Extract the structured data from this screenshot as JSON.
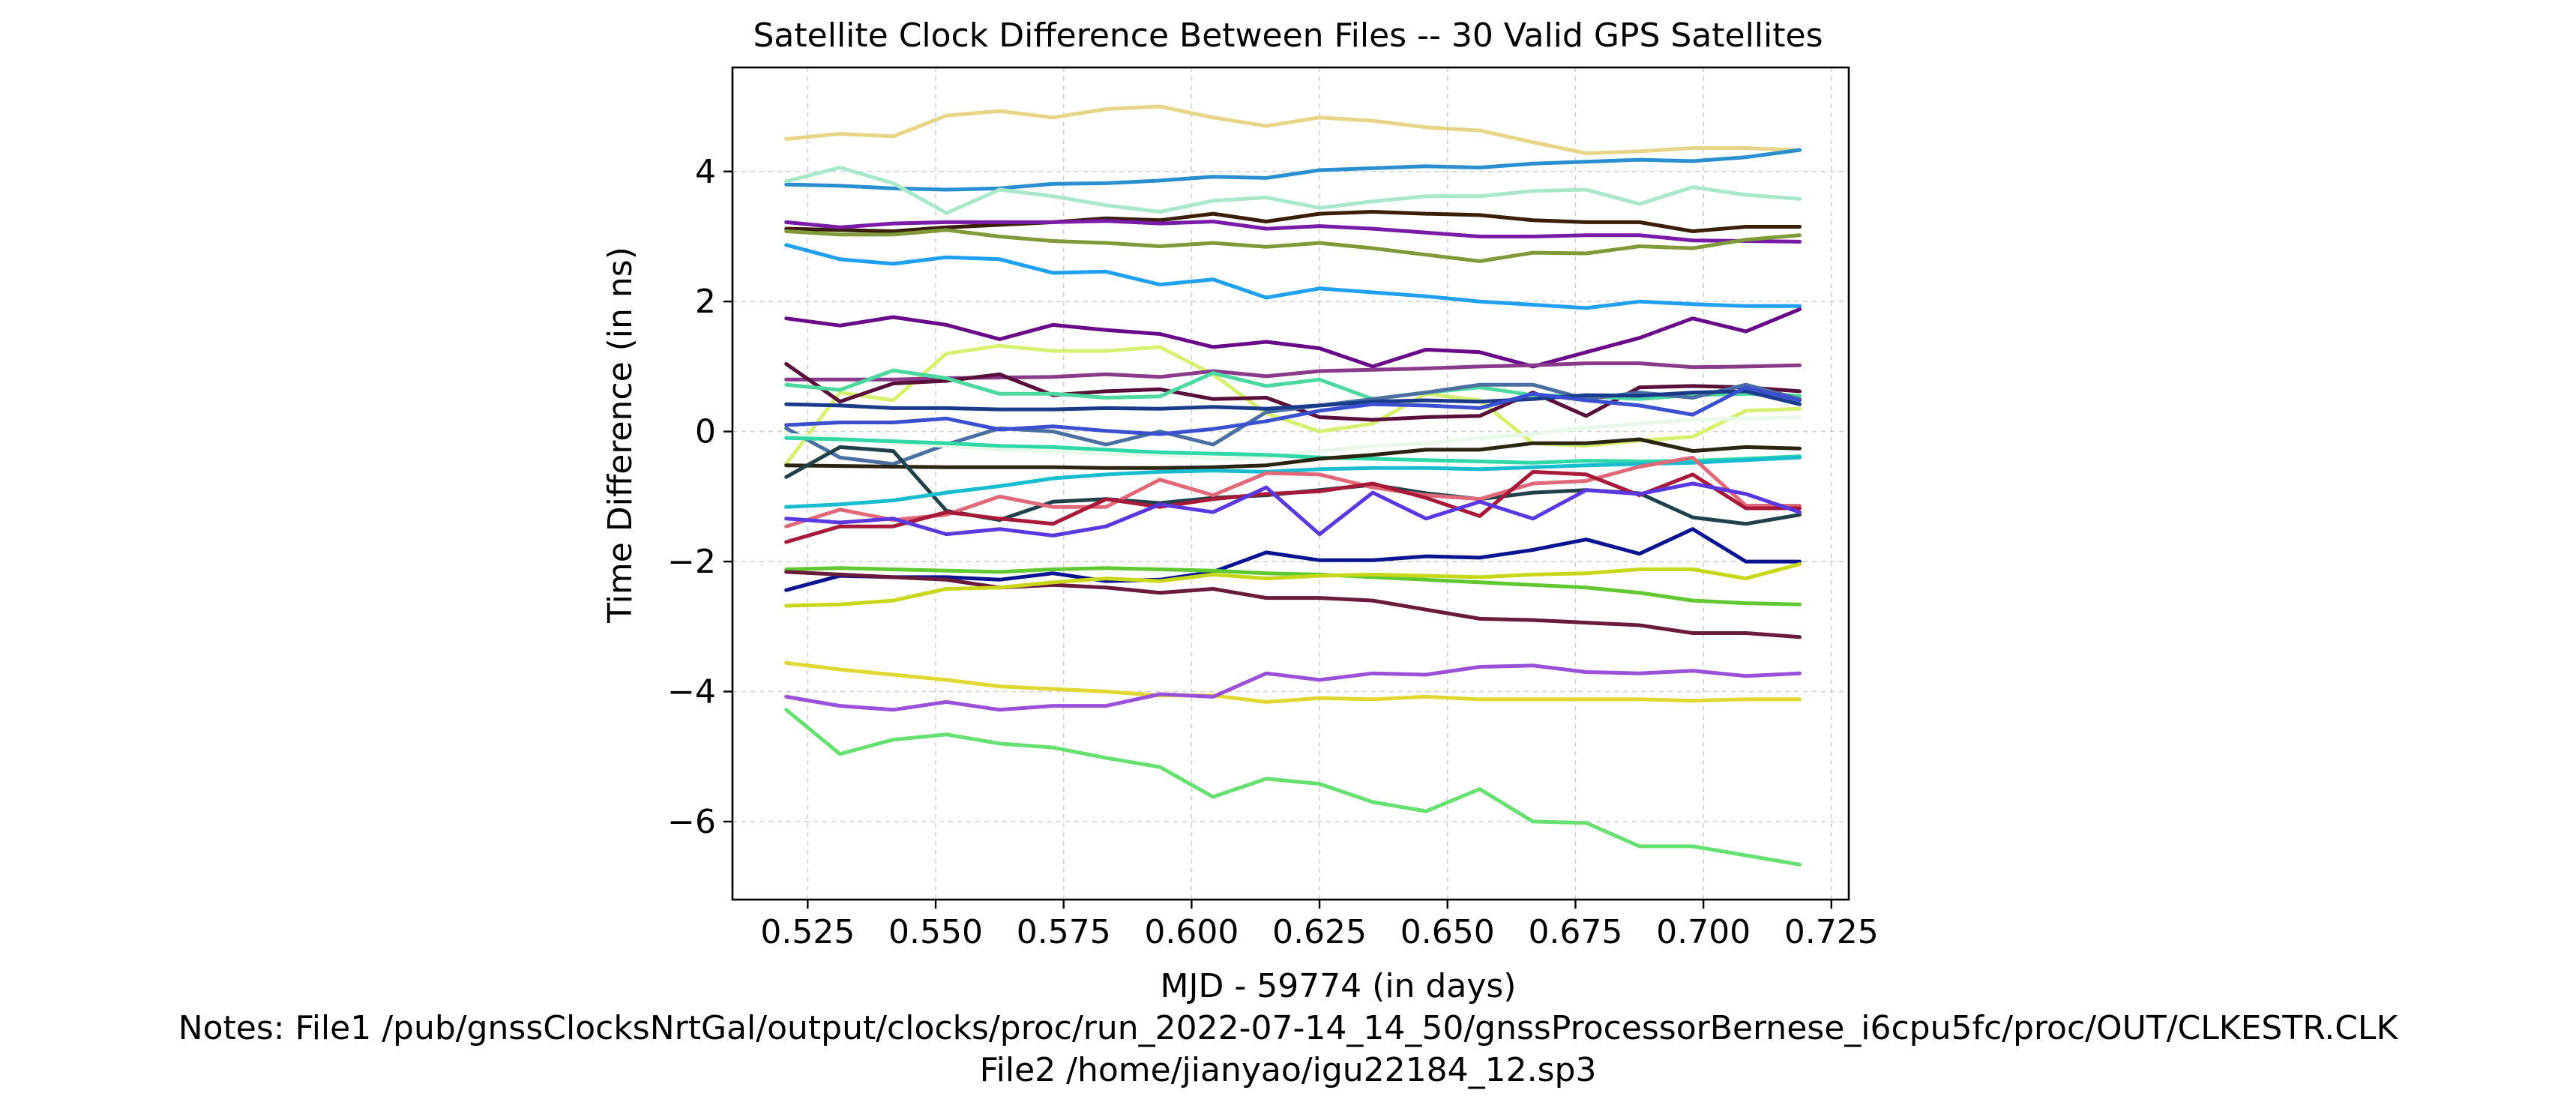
{
  "chart_data": {
    "type": "line",
    "title": "Satellite Clock Difference Between Files -- 30 Valid GPS Satellites",
    "xlabel": "MJD - 59774 (in days)",
    "ylabel": "Time Difference (in ns)",
    "notes": [
      "Notes: File1 /pub/gnssClocksNrtGal/output/clocks/proc/run_2022-07-14_14_50/gnssProcessorBernese_i6cpu5fc/proc/OUT/CLKESTR.CLK",
      "File2 /home/jianyao/igu22184_12.sp3"
    ],
    "xlim": [
      0.5103,
      0.7284
    ],
    "ylim": [
      -7.2,
      5.6
    ],
    "xticks": [
      0.525,
      0.55,
      0.575,
      0.6,
      0.625,
      0.65,
      0.675,
      0.7,
      0.725
    ],
    "xtick_labels": [
      "0.525",
      "0.550",
      "0.575",
      "0.600",
      "0.625",
      "0.650",
      "0.675",
      "0.700",
      "0.725"
    ],
    "yticks": [
      -6,
      -4,
      -2,
      0,
      2,
      4
    ],
    "ytick_labels": [
      "−6",
      "−4",
      "−2",
      "0",
      "2",
      "4"
    ],
    "grid": true,
    "x": [
      0.5208,
      0.5313,
      0.5417,
      0.5521,
      0.5625,
      0.5729,
      0.5833,
      0.5938,
      0.6042,
      0.6146,
      0.625,
      0.6354,
      0.6458,
      0.6563,
      0.6667,
      0.6771,
      0.6875,
      0.6979,
      0.7083,
      0.7188
    ],
    "series": [
      {
        "color": "#e6d487",
        "values": [
          4.5,
          4.58,
          4.54,
          4.86,
          4.93,
          4.83,
          4.96,
          5.0,
          4.83,
          4.7,
          4.83,
          4.78,
          4.68,
          4.63,
          4.45,
          4.28,
          4.31,
          4.36,
          4.36,
          4.33
        ]
      },
      {
        "color": "#2a8fd0",
        "values": [
          3.8,
          3.78,
          3.74,
          3.72,
          3.74,
          3.81,
          3.82,
          3.86,
          3.92,
          3.9,
          4.02,
          4.05,
          4.08,
          4.06,
          4.12,
          4.15,
          4.18,
          4.16,
          4.22,
          4.33
        ]
      },
      {
        "color": "#a8e8c8",
        "values": [
          3.85,
          4.06,
          3.82,
          3.36,
          3.72,
          3.62,
          3.48,
          3.38,
          3.55,
          3.6,
          3.44,
          3.54,
          3.62,
          3.62,
          3.7,
          3.72,
          3.5,
          3.76,
          3.64,
          3.58
        ]
      },
      {
        "color": "#3b1e08",
        "values": [
          3.12,
          3.1,
          3.08,
          3.14,
          3.18,
          3.22,
          3.28,
          3.25,
          3.35,
          3.23,
          3.35,
          3.38,
          3.35,
          3.33,
          3.25,
          3.22,
          3.22,
          3.08,
          3.15,
          3.15
        ]
      },
      {
        "color": "#7a1aa8",
        "values": [
          3.22,
          3.14,
          3.2,
          3.22,
          3.22,
          3.22,
          3.24,
          3.2,
          3.23,
          3.12,
          3.16,
          3.12,
          3.06,
          3.0,
          3.0,
          3.02,
          3.02,
          2.94,
          2.93,
          2.92
        ]
      },
      {
        "color": "#7f9a38",
        "values": [
          3.08,
          3.03,
          3.03,
          3.1,
          3.0,
          2.93,
          2.9,
          2.85,
          2.9,
          2.84,
          2.9,
          2.82,
          2.72,
          2.62,
          2.75,
          2.74,
          2.85,
          2.82,
          2.95,
          3.02
        ]
      },
      {
        "color": "#1fa0f0",
        "values": [
          2.87,
          2.65,
          2.58,
          2.68,
          2.65,
          2.44,
          2.46,
          2.26,
          2.34,
          2.06,
          2.2,
          2.14,
          2.08,
          2.0,
          1.95,
          1.9,
          2.0,
          1.96,
          1.93,
          1.93
        ]
      },
      {
        "color": "#6a0a8a",
        "values": [
          1.74,
          1.63,
          1.76,
          1.64,
          1.42,
          1.64,
          1.56,
          1.5,
          1.3,
          1.38,
          1.28,
          1.0,
          1.26,
          1.22,
          1.0,
          1.22,
          1.44,
          1.74,
          1.54,
          1.88
        ]
      },
      {
        "color": "#d6f070",
        "values": [
          -0.5,
          0.6,
          0.48,
          1.2,
          1.32,
          1.24,
          1.24,
          1.3,
          0.88,
          0.28,
          0.0,
          0.12,
          0.58,
          0.48,
          -0.18,
          -0.22,
          -0.14,
          -0.08,
          0.32,
          0.35
        ]
      },
      {
        "color": "#8a3a8a",
        "values": [
          0.8,
          0.8,
          0.8,
          0.82,
          0.83,
          0.84,
          0.88,
          0.84,
          0.93,
          0.85,
          0.93,
          0.95,
          0.97,
          1.0,
          1.02,
          1.05,
          1.05,
          0.99,
          1.0,
          1.02
        ]
      },
      {
        "color": "#5a0f3a",
        "values": [
          1.04,
          0.46,
          0.74,
          0.78,
          0.88,
          0.56,
          0.62,
          0.65,
          0.5,
          0.52,
          0.22,
          0.18,
          0.22,
          0.24,
          0.6,
          0.24,
          0.68,
          0.7,
          0.68,
          0.62
        ]
      },
      {
        "color": "#4dd8a0",
        "values": [
          0.72,
          0.64,
          0.94,
          0.82,
          0.58,
          0.58,
          0.52,
          0.54,
          0.9,
          0.7,
          0.8,
          0.5,
          0.6,
          0.68,
          0.56,
          0.54,
          0.5,
          0.56,
          0.58,
          0.55
        ]
      },
      {
        "color": "#4a6fa0",
        "values": [
          0.05,
          -0.4,
          -0.5,
          -0.2,
          0.05,
          0.0,
          -0.2,
          0.0,
          -0.2,
          0.3,
          0.4,
          0.5,
          0.6,
          0.72,
          0.72,
          0.5,
          0.6,
          0.52,
          0.72,
          0.5
        ]
      },
      {
        "color": "#1a3a8a",
        "values": [
          0.42,
          0.4,
          0.36,
          0.36,
          0.34,
          0.34,
          0.36,
          0.35,
          0.38,
          0.35,
          0.4,
          0.46,
          0.48,
          0.46,
          0.5,
          0.56,
          0.55,
          0.6,
          0.62,
          0.42
        ]
      },
      {
        "color": "#3a50d0",
        "values": [
          0.1,
          0.14,
          0.14,
          0.2,
          0.03,
          0.08,
          0.01,
          -0.04,
          0.04,
          0.16,
          0.32,
          0.42,
          0.4,
          0.36,
          0.58,
          0.48,
          0.4,
          0.26,
          0.68,
          0.48
        ]
      },
      {
        "color": "#e8f8e8",
        "values": [
          -0.05,
          -0.1,
          -0.18,
          -0.22,
          -0.28,
          -0.3,
          -0.34,
          -0.36,
          -0.42,
          -0.4,
          -0.3,
          -0.22,
          -0.18,
          -0.1,
          -0.04,
          0.06,
          0.12,
          0.18,
          0.2,
          0.22
        ]
      },
      {
        "color": "#30d8a8",
        "values": [
          -0.1,
          -0.12,
          -0.15,
          -0.18,
          -0.22,
          -0.24,
          -0.28,
          -0.32,
          -0.34,
          -0.36,
          -0.4,
          -0.42,
          -0.44,
          -0.46,
          -0.48,
          -0.45,
          -0.46,
          -0.45,
          -0.42,
          -0.38
        ]
      },
      {
        "color": "#2a2410",
        "values": [
          -0.52,
          -0.53,
          -0.54,
          -0.55,
          -0.55,
          -0.55,
          -0.56,
          -0.56,
          -0.55,
          -0.52,
          -0.42,
          -0.36,
          -0.28,
          -0.28,
          -0.18,
          -0.18,
          -0.12,
          -0.3,
          -0.24,
          -0.26
        ]
      },
      {
        "color": "#20404a",
        "values": [
          -0.7,
          -0.24,
          -0.3,
          -1.22,
          -1.36,
          -1.08,
          -1.04,
          -1.1,
          -1.02,
          -0.98,
          -0.9,
          -0.82,
          -0.95,
          -1.04,
          -0.94,
          -0.9,
          -0.95,
          -1.32,
          -1.42,
          -1.28
        ]
      },
      {
        "color": "#18bcd0",
        "values": [
          -1.16,
          -1.12,
          -1.06,
          -0.94,
          -0.84,
          -0.72,
          -0.66,
          -0.62,
          -0.6,
          -0.62,
          -0.58,
          -0.56,
          -0.56,
          -0.58,
          -0.55,
          -0.52,
          -0.5,
          -0.48,
          -0.44,
          -0.4
        ]
      },
      {
        "color": "#e06878",
        "values": [
          -1.46,
          -1.2,
          -1.36,
          -1.28,
          -1.0,
          -1.16,
          -1.16,
          -0.74,
          -0.98,
          -0.64,
          -0.66,
          -0.86,
          -0.98,
          -1.04,
          -0.8,
          -0.76,
          -0.54,
          -0.4,
          -1.14,
          -1.14
        ]
      },
      {
        "color": "#a81838",
        "values": [
          -1.7,
          -1.46,
          -1.46,
          -1.24,
          -1.34,
          -1.42,
          -1.04,
          -1.16,
          -1.04,
          -0.96,
          -0.92,
          -0.8,
          -1.02,
          -1.3,
          -0.62,
          -0.66,
          -0.98,
          -0.66,
          -1.18,
          -1.18
        ]
      },
      {
        "color": "#5a38e0",
        "values": [
          -1.34,
          -1.4,
          -1.34,
          -1.58,
          -1.5,
          -1.6,
          -1.46,
          -1.12,
          -1.24,
          -0.86,
          -1.58,
          -0.94,
          -1.34,
          -1.08,
          -1.34,
          -0.9,
          -0.96,
          -0.8,
          -0.96,
          -1.24
        ]
      },
      {
        "color": "#0a1490",
        "values": [
          -2.44,
          -2.22,
          -2.24,
          -2.24,
          -2.28,
          -2.18,
          -2.3,
          -2.28,
          -2.16,
          -1.86,
          -1.98,
          -1.98,
          -1.92,
          -1.94,
          -1.82,
          -1.66,
          -1.88,
          -1.5,
          -2.0,
          -2.0
        ]
      },
      {
        "color": "#60c830",
        "values": [
          -2.12,
          -2.1,
          -2.12,
          -2.14,
          -2.16,
          -2.12,
          -2.1,
          -2.12,
          -2.14,
          -2.18,
          -2.2,
          -2.24,
          -2.28,
          -2.32,
          -2.36,
          -2.4,
          -2.48,
          -2.6,
          -2.64,
          -2.66
        ]
      },
      {
        "color": "#6a1a3a",
        "values": [
          -2.16,
          -2.2,
          -2.24,
          -2.28,
          -2.4,
          -2.36,
          -2.4,
          -2.48,
          -2.42,
          -2.56,
          -2.56,
          -2.6,
          -2.74,
          -2.88,
          -2.9,
          -2.94,
          -2.98,
          -3.1,
          -3.1,
          -3.16
        ]
      },
      {
        "color": "#c8d818",
        "values": [
          -2.68,
          -2.66,
          -2.6,
          -2.42,
          -2.4,
          -2.32,
          -2.26,
          -2.3,
          -2.2,
          -2.26,
          -2.22,
          -2.2,
          -2.22,
          -2.24,
          -2.2,
          -2.18,
          -2.12,
          -2.12,
          -2.26,
          -2.04
        ]
      },
      {
        "color": "#e0d830",
        "values": [
          -3.56,
          -3.66,
          -3.74,
          -3.82,
          -3.92,
          -3.96,
          -4.0,
          -4.06,
          -4.06,
          -4.16,
          -4.1,
          -4.12,
          -4.08,
          -4.12,
          -4.12,
          -4.12,
          -4.12,
          -4.14,
          -4.12,
          -4.12
        ]
      },
      {
        "color": "#9a50d8",
        "values": [
          -4.08,
          -4.22,
          -4.28,
          -4.16,
          -4.28,
          -4.22,
          -4.22,
          -4.04,
          -4.08,
          -3.72,
          -3.82,
          -3.72,
          -3.74,
          -3.62,
          -3.6,
          -3.7,
          -3.72,
          -3.68,
          -3.76,
          -3.72
        ]
      },
      {
        "color": "#66e070",
        "values": [
          -4.28,
          -4.96,
          -4.74,
          -4.66,
          -4.8,
          -4.86,
          -5.02,
          -5.16,
          -5.62,
          -5.34,
          -5.42,
          -5.7,
          -5.84,
          -5.5,
          -6.0,
          -6.02,
          -6.38,
          -6.38,
          -6.52,
          -6.66
        ]
      }
    ]
  }
}
